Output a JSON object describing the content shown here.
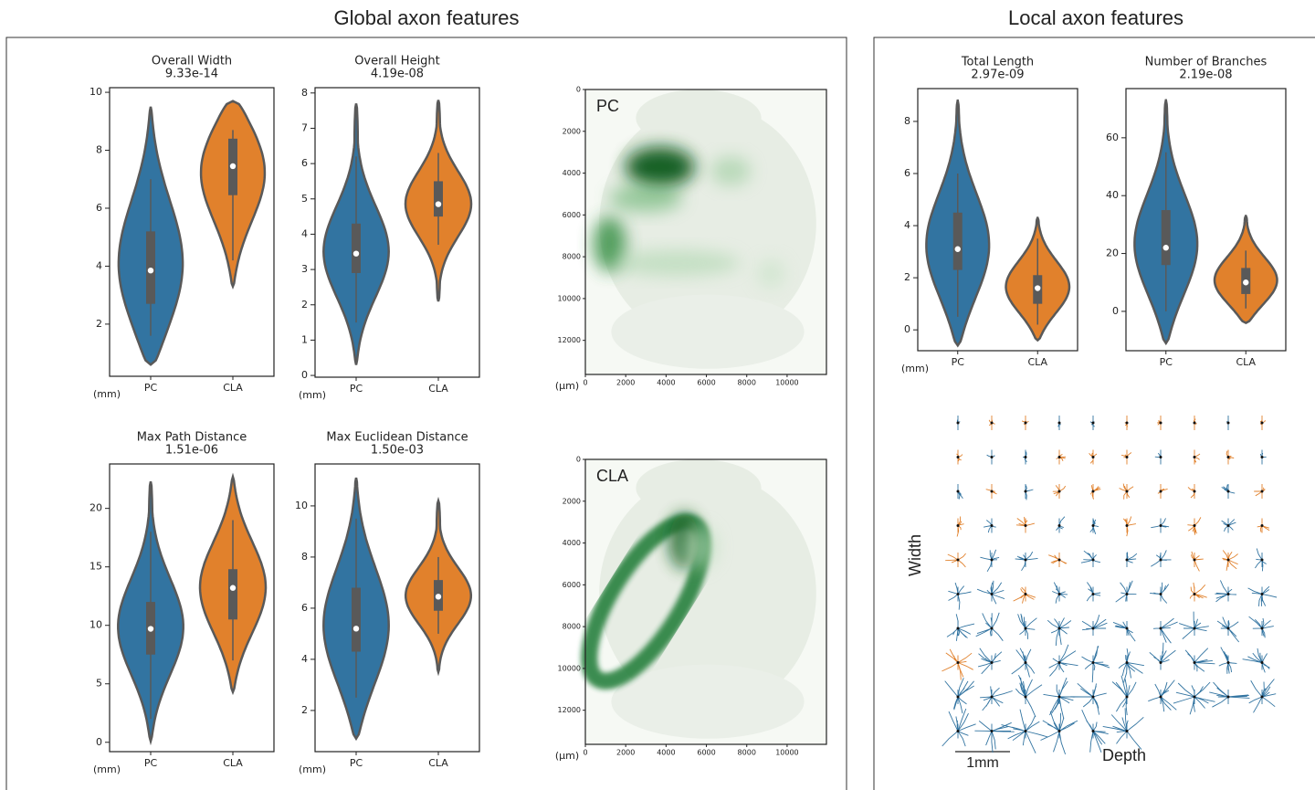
{
  "panels": {
    "global": "Global axon features",
    "local": "Local axon features"
  },
  "chart_data": [
    {
      "type": "violin",
      "title": "Overall Width",
      "subtitle": "9.33e-14",
      "unit_label": "(mm)",
      "categories": [
        "PC",
        "CLA"
      ],
      "colors": [
        "#3274a1",
        "#e1812c"
      ],
      "violin_min": [
        0.6,
        3.3
      ],
      "whisker_low": [
        1.6,
        4.2
      ],
      "q1": [
        2.7,
        6.45
      ],
      "median": [
        3.85,
        7.45
      ],
      "q3": [
        5.2,
        8.4
      ],
      "whisker_high": [
        7.0,
        8.7
      ],
      "violin_max": [
        9.5,
        9.7
      ],
      "ylim": [
        0.2,
        10.16
      ],
      "yticks": [
        2,
        4,
        6,
        8,
        10
      ]
    },
    {
      "type": "violin",
      "title": "Overall Height",
      "subtitle": "4.19e-08",
      "unit_label": "(mm)",
      "categories": [
        "PC",
        "CLA"
      ],
      "colors": [
        "#3274a1",
        "#e1812c"
      ],
      "violin_min": [
        0.3,
        2.1
      ],
      "whisker_low": [
        1.5,
        3.7
      ],
      "q1": [
        2.9,
        4.5
      ],
      "median": [
        3.45,
        4.85
      ],
      "q3": [
        4.3,
        5.5
      ],
      "whisker_high": [
        6.2,
        6.3
      ],
      "violin_max": [
        7.7,
        7.8
      ],
      "ylim": [
        -0.05,
        8.15
      ],
      "yticks": [
        0,
        1,
        2,
        3,
        4,
        5,
        6,
        7,
        8
      ]
    },
    {
      "type": "density-map",
      "label": "PC",
      "unit_label": "(μm)",
      "xlim": [
        0,
        11950
      ],
      "ylim": [
        0,
        13630
      ],
      "xticks": [
        0,
        2000,
        4000,
        6000,
        8000,
        10000
      ],
      "yticks": [
        0,
        2000,
        4000,
        6000,
        8000,
        10000,
        12000
      ]
    },
    {
      "type": "violin",
      "title": "Max Path Distance",
      "subtitle": "1.51e-06",
      "unit_label": "(mm)",
      "categories": [
        "PC",
        "CLA"
      ],
      "colors": [
        "#3274a1",
        "#e1812c"
      ],
      "violin_min": [
        0.1,
        4.3
      ],
      "whisker_low": [
        2,
        7
      ],
      "q1": [
        7.5,
        10.5
      ],
      "median": [
        9.7,
        13.2
      ],
      "q3": [
        12,
        14.8
      ],
      "whisker_high": [
        18,
        19
      ],
      "violin_max": [
        22.3,
        22.7
      ],
      "ylim": [
        -0.8,
        23.8
      ],
      "yticks": [
        0,
        5,
        10,
        15,
        20
      ]
    },
    {
      "type": "violin",
      "title": "Max Euclidean Distance",
      "subtitle": "1.50e-03",
      "unit_label": "(mm)",
      "categories": [
        "PC",
        "CLA"
      ],
      "colors": [
        "#3274a1",
        "#e1812c"
      ],
      "violin_min": [
        0.9,
        3.5
      ],
      "whisker_low": [
        2.5,
        5
      ],
      "q1": [
        4.3,
        5.9
      ],
      "median": [
        5.2,
        6.45
      ],
      "q3": [
        6.8,
        7.1
      ],
      "whisker_high": [
        9.5,
        8
      ],
      "violin_max": [
        11.1,
        10.2
      ],
      "ylim": [
        0.39,
        11.64
      ],
      "yticks": [
        2,
        4,
        6,
        8,
        10
      ]
    },
    {
      "type": "density-map",
      "label": "CLA",
      "unit_label": "(μm)",
      "xlim": [
        0,
        11950
      ],
      "ylim": [
        0,
        13630
      ],
      "xticks": [
        0,
        2000,
        4000,
        6000,
        8000,
        10000
      ],
      "yticks": [
        0,
        2000,
        4000,
        6000,
        8000,
        10000,
        12000
      ]
    },
    {
      "type": "violin",
      "title": "Total Length",
      "subtitle": "2.97e-09",
      "unit_label": "(mm)",
      "categories": [
        "PC",
        "CLA"
      ],
      "colors": [
        "#3274a1",
        "#e1812c"
      ],
      "violin_min": [
        -0.6,
        -0.4
      ],
      "whisker_low": [
        0.5,
        0.2
      ],
      "q1": [
        2.3,
        1.0
      ],
      "median": [
        3.1,
        1.6
      ],
      "q3": [
        4.5,
        2.1
      ],
      "whisker_high": [
        6,
        3.5
      ],
      "violin_max": [
        8.8,
        4.3
      ],
      "ylim": [
        -0.8,
        9.26
      ],
      "yticks": [
        0,
        2,
        4,
        6,
        8
      ]
    },
    {
      "type": "violin",
      "title": "Number of Branches",
      "subtitle": "2.19e-08",
      "categories": [
        "PC",
        "CLA"
      ],
      "colors": [
        "#3274a1",
        "#e1812c"
      ],
      "violin_min": [
        -11,
        -4
      ],
      "whisker_low": [
        0,
        1
      ],
      "q1": [
        16,
        6
      ],
      "median": [
        22,
        10
      ],
      "q3": [
        35,
        15
      ],
      "whisker_high": [
        55,
        21
      ],
      "violin_max": [
        73,
        33
      ],
      "ylim": [
        -13.6,
        77
      ],
      "yticks": [
        0,
        20,
        40,
        60
      ]
    }
  ],
  "morphology": {
    "y_label": "Width",
    "x_label": "Depth",
    "scale_label": "1mm"
  }
}
